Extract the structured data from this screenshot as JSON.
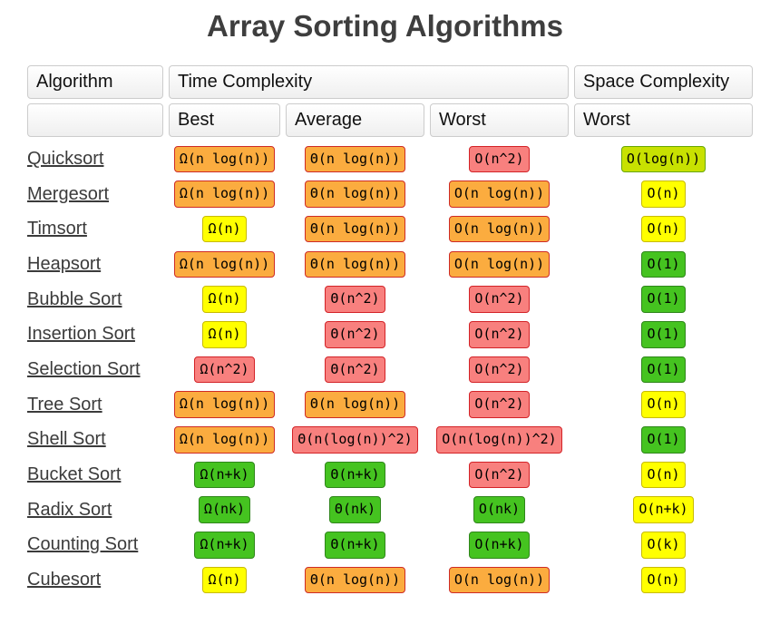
{
  "title": "Array Sorting Algorithms",
  "header": {
    "algorithm": "Algorithm",
    "time_complexity": "Time Complexity",
    "space_complexity": "Space Complexity",
    "sub_best": "Best",
    "sub_average": "Average",
    "sub_worst": "Worst",
    "sub_space_worst": "Worst"
  },
  "colors": {
    "orange_bg": "#FBAC3F",
    "orange_border": "#CE2B26",
    "red_bg": "#F8807E",
    "red_border": "#D32227",
    "yellow_bg": "#FFFF00",
    "yellow_border": "#C8BB00",
    "chartreuse_bg": "#C8E101",
    "chartreuse_border": "#68A703",
    "green_bg": "#45C320",
    "green_border": "#2F861B",
    "title_text": "#3e3e3e",
    "link_text": "#3b3b3b"
  },
  "rows": [
    {
      "name": "Quicksort",
      "best": {
        "text": "Ω(n log(n))",
        "tier": "orange"
      },
      "average": {
        "text": "Θ(n log(n))",
        "tier": "orange"
      },
      "worst": {
        "text": "O(n^2)",
        "tier": "red"
      },
      "space": {
        "text": "O(log(n))",
        "tier": "chartreuse"
      }
    },
    {
      "name": "Mergesort",
      "best": {
        "text": "Ω(n log(n))",
        "tier": "orange"
      },
      "average": {
        "text": "Θ(n log(n))",
        "tier": "orange"
      },
      "worst": {
        "text": "O(n log(n))",
        "tier": "orange"
      },
      "space": {
        "text": "O(n)",
        "tier": "yellow"
      }
    },
    {
      "name": "Timsort",
      "best": {
        "text": "Ω(n)",
        "tier": "yellow"
      },
      "average": {
        "text": "Θ(n log(n))",
        "tier": "orange"
      },
      "worst": {
        "text": "O(n log(n))",
        "tier": "orange"
      },
      "space": {
        "text": "O(n)",
        "tier": "yellow"
      }
    },
    {
      "name": "Heapsort",
      "best": {
        "text": "Ω(n log(n))",
        "tier": "orange"
      },
      "average": {
        "text": "Θ(n log(n))",
        "tier": "orange"
      },
      "worst": {
        "text": "O(n log(n))",
        "tier": "orange"
      },
      "space": {
        "text": "O(1)",
        "tier": "green"
      }
    },
    {
      "name": "Bubble Sort",
      "best": {
        "text": "Ω(n)",
        "tier": "yellow"
      },
      "average": {
        "text": "Θ(n^2)",
        "tier": "red"
      },
      "worst": {
        "text": "O(n^2)",
        "tier": "red"
      },
      "space": {
        "text": "O(1)",
        "tier": "green"
      }
    },
    {
      "name": "Insertion Sort",
      "best": {
        "text": "Ω(n)",
        "tier": "yellow"
      },
      "average": {
        "text": "Θ(n^2)",
        "tier": "red"
      },
      "worst": {
        "text": "O(n^2)",
        "tier": "red"
      },
      "space": {
        "text": "O(1)",
        "tier": "green"
      }
    },
    {
      "name": "Selection Sort",
      "best": {
        "text": "Ω(n^2)",
        "tier": "red"
      },
      "average": {
        "text": "Θ(n^2)",
        "tier": "red"
      },
      "worst": {
        "text": "O(n^2)",
        "tier": "red"
      },
      "space": {
        "text": "O(1)",
        "tier": "green"
      }
    },
    {
      "name": "Tree Sort",
      "best": {
        "text": "Ω(n log(n))",
        "tier": "orange"
      },
      "average": {
        "text": "Θ(n log(n))",
        "tier": "orange"
      },
      "worst": {
        "text": "O(n^2)",
        "tier": "red"
      },
      "space": {
        "text": "O(n)",
        "tier": "yellow"
      }
    },
    {
      "name": "Shell Sort",
      "best": {
        "text": "Ω(n log(n))",
        "tier": "orange"
      },
      "average": {
        "text": "Θ(n(log(n))^2)",
        "tier": "red"
      },
      "worst": {
        "text": "O(n(log(n))^2)",
        "tier": "red"
      },
      "space": {
        "text": "O(1)",
        "tier": "green"
      }
    },
    {
      "name": "Bucket Sort",
      "best": {
        "text": "Ω(n+k)",
        "tier": "green"
      },
      "average": {
        "text": "Θ(n+k)",
        "tier": "green"
      },
      "worst": {
        "text": "O(n^2)",
        "tier": "red"
      },
      "space": {
        "text": "O(n)",
        "tier": "yellow"
      }
    },
    {
      "name": "Radix Sort",
      "best": {
        "text": "Ω(nk)",
        "tier": "green"
      },
      "average": {
        "text": "Θ(nk)",
        "tier": "green"
      },
      "worst": {
        "text": "O(nk)",
        "tier": "green"
      },
      "space": {
        "text": "O(n+k)",
        "tier": "yellow"
      }
    },
    {
      "name": "Counting Sort",
      "best": {
        "text": "Ω(n+k)",
        "tier": "green"
      },
      "average": {
        "text": "Θ(n+k)",
        "tier": "green"
      },
      "worst": {
        "text": "O(n+k)",
        "tier": "green"
      },
      "space": {
        "text": "O(k)",
        "tier": "yellow"
      }
    },
    {
      "name": "Cubesort",
      "best": {
        "text": "Ω(n)",
        "tier": "yellow"
      },
      "average": {
        "text": "Θ(n log(n))",
        "tier": "orange"
      },
      "worst": {
        "text": "O(n log(n))",
        "tier": "orange"
      },
      "space": {
        "text": "O(n)",
        "tier": "yellow"
      }
    }
  ]
}
